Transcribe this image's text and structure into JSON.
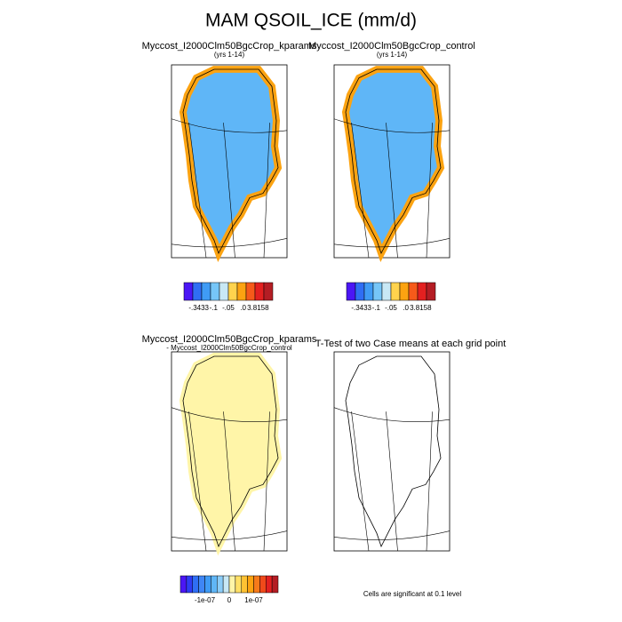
{
  "title": "MAM QSOIL_ICE (mm/d)",
  "panels": [
    {
      "lines": [
        "Myccost_I2000Clm50BgcCrop_kparams",
        "(yrs 1-14)"
      ],
      "colorbar": {
        "labels": [
          "-.3433",
          "-.1",
          "-.05",
          ".0",
          "3.8158"
        ],
        "colors": [
          "#4b16f5",
          "#2f6ef4",
          "#3f9bf5",
          "#76c6f8",
          "#c8e8f5",
          "#ffd34d",
          "#fca311",
          "#f65a1a",
          "#e32020",
          "#b41d24"
        ]
      }
    },
    {
      "lines": [
        "Myccost_I2000Clm50BgcCrop_control",
        "(yrs 1-14)"
      ],
      "colorbar": {
        "labels": [
          "-.3433",
          "-.1",
          "-.05",
          ".0",
          "3.8158"
        ],
        "colors": [
          "#4b16f5",
          "#2f6ef4",
          "#3f9bf5",
          "#76c6f8",
          "#c8e8f5",
          "#ffd34d",
          "#fca311",
          "#f65a1a",
          "#e32020",
          "#b41d24"
        ]
      }
    },
    {
      "lines": [
        "Myccost_I2000Clm50BgcCrop_kparams",
        "- Myccost_I2000Clm50BgcCrop_control"
      ],
      "colorbar": {
        "labels": [
          "-1e-07",
          "0",
          "1e-07"
        ],
        "colors": [
          "#4b16f5",
          "#2e3cf4",
          "#2f6ef4",
          "#3f86f5",
          "#3f9bf5",
          "#5fb6f7",
          "#8ccdf8",
          "#c8e8f5",
          "#fff5a8",
          "#ffe066",
          "#ffc233",
          "#fca311",
          "#f67a1a",
          "#f04a1a",
          "#e32020",
          "#b41d24"
        ]
      }
    },
    {
      "lines": [
        "T-Test of two Case means at each grid point"
      ],
      "note": "Cells are significant at 0.1 level"
    }
  ]
}
